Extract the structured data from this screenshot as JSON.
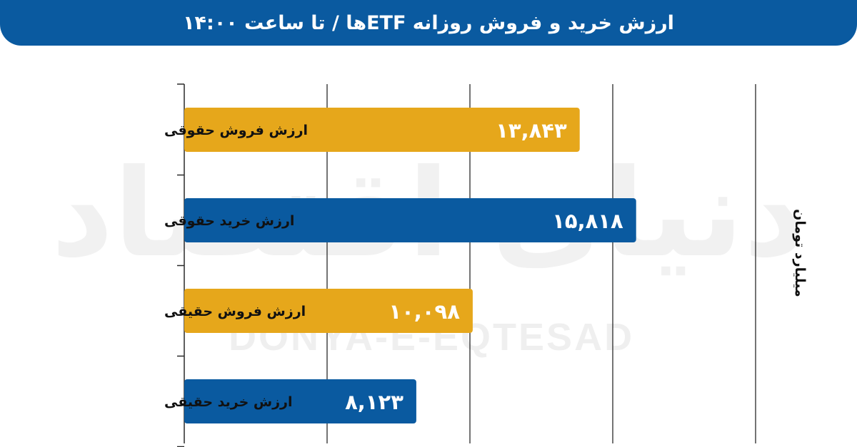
{
  "header": {
    "title": "ارزش خرید و فروش روزانه ETFها / تا ساعت ۱۴:۰۰"
  },
  "watermark": {
    "text_fa": "دنیای اقتصاد",
    "text_en": "DONYA-E-EQTESAD"
  },
  "colors": {
    "header_bg": "#0a5aa0",
    "sell_bar": "#e6a71b",
    "buy_bar": "#0a5aa0",
    "grid": "#2a2a2a",
    "value_text": "#ffffff",
    "label_text": "#111111"
  },
  "chart_data": {
    "type": "bar",
    "orientation": "horizontal",
    "categories": [
      "ارزش فروش حقوقی",
      "ارزش خرید حقوقی",
      "ارزش فروش حقیقی",
      "ارزش خرید حقیقی"
    ],
    "values": [
      13843,
      15818,
      10098,
      8123
    ],
    "value_labels": [
      "۱۳,۸۴۳",
      "۱۵,۸۱۸",
      "۱۰,۰۹۸",
      "۸,۱۲۳"
    ],
    "bar_colors": [
      "#e6a71b",
      "#0a5aa0",
      "#e6a71b",
      "#0a5aa0"
    ],
    "title": "ارزش خرید و فروش روزانه ETFها / تا ساعت ۱۴:۰۰",
    "value_axis_label": "میلیارد تومان",
    "xlim": [
      0,
      20000
    ],
    "gridlines": [
      5000,
      10000,
      15000,
      20000
    ],
    "grid": true
  }
}
